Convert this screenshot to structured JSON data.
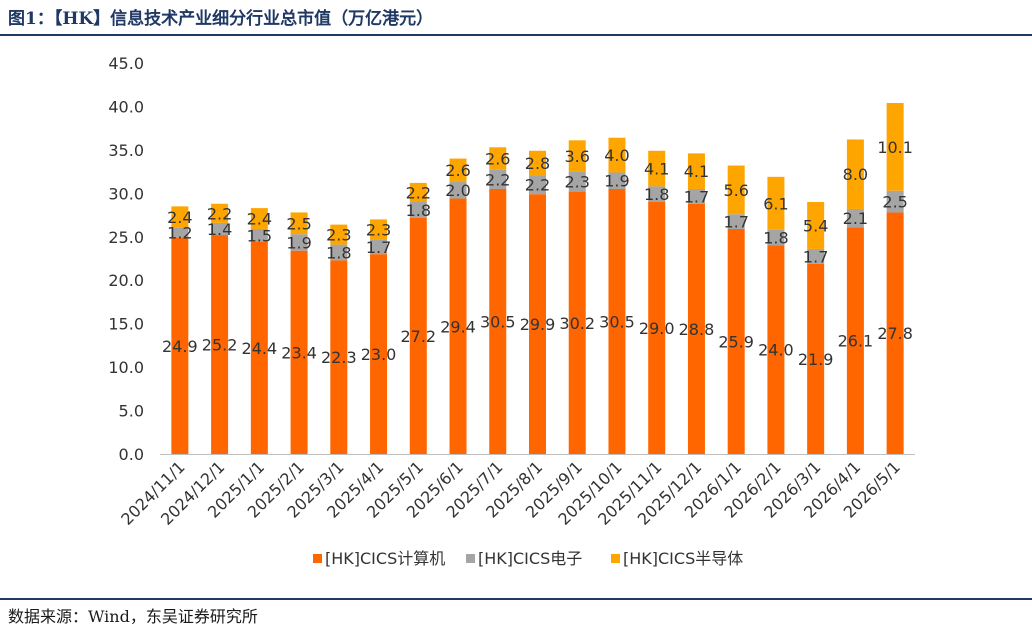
{
  "title": "图1：【HK】信息技术产业细分行业总市值（万亿港元）",
  "source": "数据来源：Wind，东吴证券研究所",
  "colors": {
    "series0": "#ff6600",
    "series1": "#a5a5a5",
    "series2": "#ffa500",
    "axis": "#bfbfbf"
  },
  "chart_data": {
    "type": "bar",
    "stacked": true,
    "categories": [
      "2024/11/1",
      "2024/12/1",
      "2025/1/1",
      "2025/2/1",
      "2025/3/1",
      "2025/4/1",
      "2025/5/1",
      "2025/6/1",
      "2025/7/1",
      "2025/8/1",
      "2025/9/1",
      "2025/10/1",
      "2025/11/1",
      "2025/12/1",
      "2026/1/1",
      "2026/2/1",
      "2026/3/1",
      "2026/4/1",
      "2026/5/1"
    ],
    "series": [
      {
        "name": "[HK]CICS计算机",
        "values": [
          24.9,
          25.2,
          24.4,
          23.4,
          22.3,
          23.0,
          27.2,
          29.4,
          30.5,
          29.9,
          30.2,
          30.5,
          29.0,
          28.8,
          25.9,
          24.0,
          21.9,
          26.1,
          27.8
        ]
      },
      {
        "name": "[HK]CICS电子",
        "values": [
          1.2,
          1.4,
          1.5,
          1.9,
          1.8,
          1.7,
          1.8,
          2.0,
          2.2,
          2.2,
          2.3,
          1.9,
          1.8,
          1.7,
          1.7,
          1.8,
          1.7,
          2.1,
          2.5
        ]
      },
      {
        "name": "[HK]CICS半导体",
        "values": [
          2.4,
          2.2,
          2.4,
          2.5,
          2.3,
          2.3,
          2.2,
          2.6,
          2.6,
          2.8,
          3.6,
          4.0,
          4.1,
          4.1,
          5.6,
          6.1,
          5.4,
          8.0,
          10.1
        ]
      }
    ],
    "yticks": [
      "0.0",
      "5.0",
      "10.0",
      "15.0",
      "20.0",
      "25.0",
      "30.0",
      "35.0",
      "40.0",
      "45.0"
    ],
    "ylim": [
      0,
      45
    ],
    "legend": "bottom",
    "grid": false
  }
}
